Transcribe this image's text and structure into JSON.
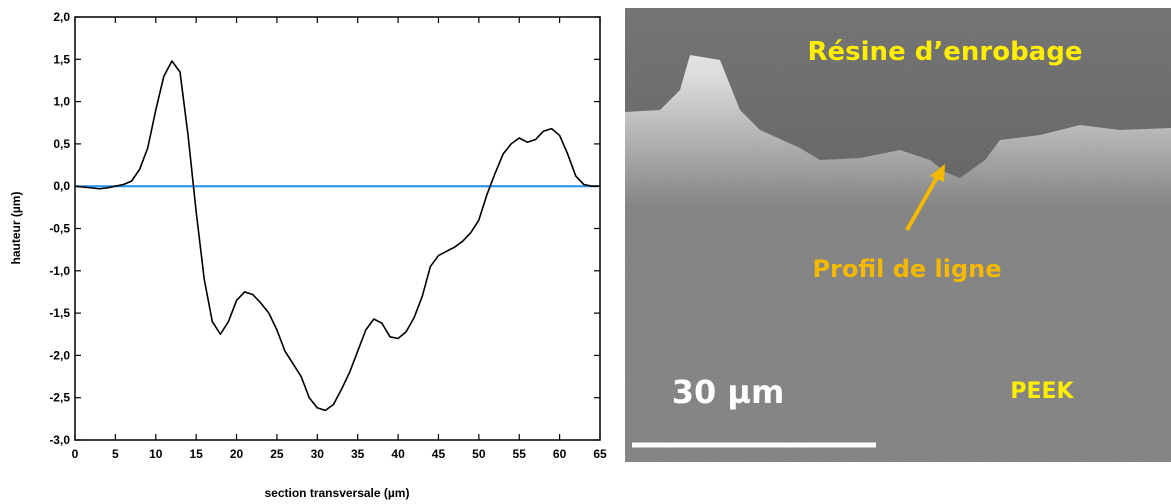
{
  "chart_data": {
    "type": "line",
    "xlabel": "section transversale (µm)",
    "ylabel": "hauteur (µm)",
    "x": [
      0,
      2,
      3,
      4,
      5,
      6,
      7,
      8,
      9,
      10,
      11,
      12,
      13,
      14,
      15,
      16,
      17,
      18,
      19,
      20,
      21,
      22,
      23,
      24,
      25,
      26,
      27,
      28,
      29,
      30,
      31,
      32,
      33,
      34,
      35,
      36,
      37,
      38,
      39,
      40,
      41,
      42,
      43,
      44,
      45,
      46,
      47,
      48,
      49,
      50,
      51,
      52,
      53,
      54,
      55,
      56,
      57,
      58,
      59,
      60,
      61,
      62,
      63,
      64,
      65
    ],
    "series": [
      {
        "color": "#000000",
        "values": [
          0,
          -0.02,
          -0.03,
          -0.02,
          0,
          0.02,
          0.06,
          0.2,
          0.45,
          0.9,
          1.3,
          1.48,
          1.35,
          0.6,
          -0.3,
          -1.1,
          -1.6,
          -1.75,
          -1.6,
          -1.35,
          -1.25,
          -1.28,
          -1.38,
          -1.5,
          -1.7,
          -1.95,
          -2.1,
          -2.25,
          -2.5,
          -2.62,
          -2.65,
          -2.58,
          -2.4,
          -2.2,
          -1.95,
          -1.7,
          -1.57,
          -1.62,
          -1.78,
          -1.8,
          -1.72,
          -1.55,
          -1.3,
          -0.95,
          -0.82,
          -0.77,
          -0.72,
          -0.65,
          -0.55,
          -0.4,
          -0.1,
          0.15,
          0.38,
          0.5,
          0.57,
          0.52,
          0.55,
          0.65,
          0.68,
          0.6,
          0.38,
          0.12,
          0.02,
          0,
          0
        ]
      }
    ],
    "reference_line": {
      "value": 0,
      "color": "#1e90e8"
    },
    "xlim": [
      0,
      65
    ],
    "xticks": [
      0,
      5,
      10,
      15,
      20,
      25,
      30,
      35,
      40,
      45,
      50,
      55,
      60,
      65
    ],
    "ylim": [
      -3,
      2
    ],
    "yticks": [
      {
        "value": -3,
        "label": "-3,0"
      },
      {
        "value": -2.5,
        "label": "-2,5"
      },
      {
        "value": -2,
        "label": "-2,0"
      },
      {
        "value": -1.5,
        "label": "-1,5"
      },
      {
        "value": -1,
        "label": "-1,0"
      },
      {
        "value": -0.5,
        "label": "-0,5"
      },
      {
        "value": 0,
        "label": "0,0"
      },
      {
        "value": 0.5,
        "label": "0,5"
      },
      {
        "value": 1,
        "label": "1,0"
      },
      {
        "value": 1.5,
        "label": "1,5"
      },
      {
        "value": 2,
        "label": "2,0"
      }
    ]
  },
  "image": {
    "labels": [
      {
        "text": "Résine d’enrobage",
        "color": "#ffee00"
      },
      {
        "text": "Profil de ligne",
        "color": "#f5b800"
      },
      {
        "text": "30 µm",
        "color": "#ffffff"
      },
      {
        "text": "PEEK",
        "color": "#ffee00"
      }
    ]
  }
}
